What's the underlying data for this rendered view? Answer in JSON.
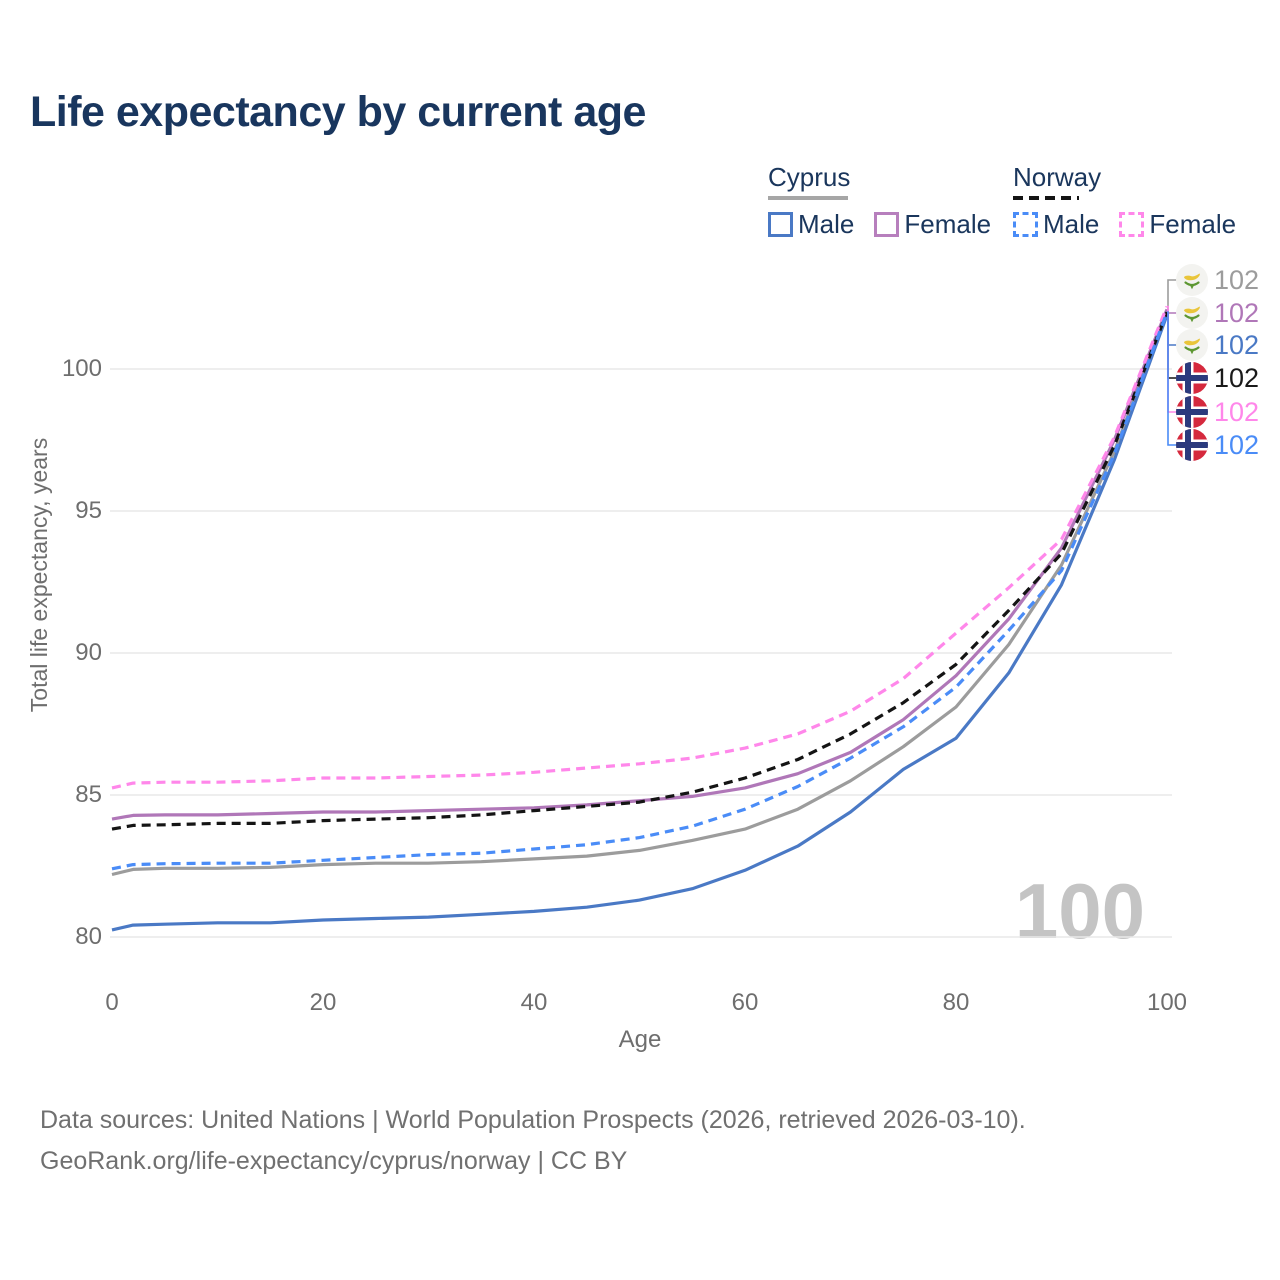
{
  "title": "Life expectancy by current age",
  "watermark_age": "100",
  "legend": {
    "groups": [
      {
        "name": "Cyprus",
        "line_style": "solid",
        "underline_color": "#a6a6a6",
        "items": [
          {
            "label": "Male",
            "color": "#4a79c5"
          },
          {
            "label": "Female",
            "color": "#b77fbd"
          }
        ]
      },
      {
        "name": "Norway",
        "line_style": "dashed",
        "underline_color": "#141414",
        "items": [
          {
            "label": "Male",
            "color": "#4a8cf7"
          },
          {
            "label": "Female",
            "color": "#ff87ea"
          }
        ]
      }
    ]
  },
  "axes": {
    "x": {
      "label": "Age",
      "ticks": [
        "0",
        "20",
        "40",
        "60",
        "80",
        "100"
      ],
      "range": [
        0,
        100
      ]
    },
    "y": {
      "label": "Total life expectancy, years",
      "ticks": [
        "100",
        "95",
        "90",
        "85",
        "80"
      ],
      "tick_values": [
        100,
        95,
        90,
        85,
        80
      ],
      "range": [
        79,
        103
      ],
      "grid": true
    }
  },
  "chart_data": {
    "type": "line",
    "x_label": "Age",
    "y_label": "Total life expectancy, years",
    "x_ages": [
      0,
      2,
      5,
      10,
      15,
      20,
      25,
      30,
      35,
      40,
      45,
      50,
      55,
      60,
      65,
      70,
      75,
      80,
      85,
      90,
      95,
      100
    ],
    "series": [
      {
        "name": "Cyprus — Both sexes",
        "country": "Cyprus",
        "sex": "both",
        "color": "#9c9c9c",
        "dashed": false,
        "end_label": "102",
        "values": [
          82.2,
          82.38,
          82.42,
          82.42,
          82.45,
          82.55,
          82.6,
          82.6,
          82.65,
          82.75,
          82.85,
          83.05,
          83.4,
          83.8,
          84.5,
          85.5,
          86.7,
          88.1,
          90.3,
          93.1,
          97.1,
          102.0
        ]
      },
      {
        "name": "Cyprus — Female",
        "country": "Cyprus",
        "sex": "female",
        "color": "#b077b8",
        "dashed": false,
        "end_label": "102",
        "values": [
          84.15,
          84.28,
          84.3,
          84.3,
          84.35,
          84.4,
          84.4,
          84.45,
          84.5,
          84.55,
          84.65,
          84.8,
          84.95,
          85.25,
          85.75,
          86.5,
          87.65,
          89.2,
          91.2,
          93.7,
          97.5,
          102.1
        ]
      },
      {
        "name": "Cyprus — Male",
        "country": "Cyprus",
        "sex": "male",
        "color": "#4a79c5",
        "dashed": false,
        "end_label": "102",
        "values": [
          80.25,
          80.42,
          80.45,
          80.5,
          80.5,
          80.6,
          80.65,
          80.7,
          80.8,
          80.9,
          81.05,
          81.3,
          81.7,
          82.35,
          83.2,
          84.4,
          85.9,
          87.0,
          89.3,
          92.4,
          96.8,
          101.9
        ]
      },
      {
        "name": "Norway — Both sexes",
        "country": "Norway",
        "sex": "both",
        "color": "#141414",
        "dashed": true,
        "end_label": "102",
        "values": [
          83.8,
          83.93,
          83.95,
          84.0,
          84.0,
          84.1,
          84.15,
          84.2,
          84.3,
          84.45,
          84.6,
          84.75,
          85.1,
          85.6,
          86.25,
          87.15,
          88.25,
          89.6,
          91.5,
          93.5,
          97.3,
          102.0
        ]
      },
      {
        "name": "Norway — Female",
        "country": "Norway",
        "sex": "female",
        "color": "#ff87ea",
        "dashed": true,
        "end_label": "102",
        "values": [
          85.25,
          85.42,
          85.45,
          85.45,
          85.5,
          85.6,
          85.6,
          85.65,
          85.7,
          85.8,
          85.95,
          86.1,
          86.3,
          86.65,
          87.15,
          87.95,
          89.1,
          90.7,
          92.3,
          94.0,
          97.6,
          102.2
        ]
      },
      {
        "name": "Norway — Male",
        "country": "Norway",
        "sex": "male",
        "color": "#4a8cf7",
        "dashed": true,
        "end_label": "102",
        "values": [
          82.4,
          82.55,
          82.58,
          82.6,
          82.6,
          82.7,
          82.8,
          82.9,
          82.95,
          83.1,
          83.25,
          83.5,
          83.9,
          84.5,
          85.3,
          86.3,
          87.4,
          88.8,
          90.8,
          92.9,
          97.0,
          102.0
        ]
      }
    ]
  },
  "footer": {
    "line1": "Data sources: United Nations | World Population Prospects (2026, retrieved 2026-03-10).",
    "line2": "GeoRank.org/life-expectancy/cyprus/norway | CC BY"
  }
}
